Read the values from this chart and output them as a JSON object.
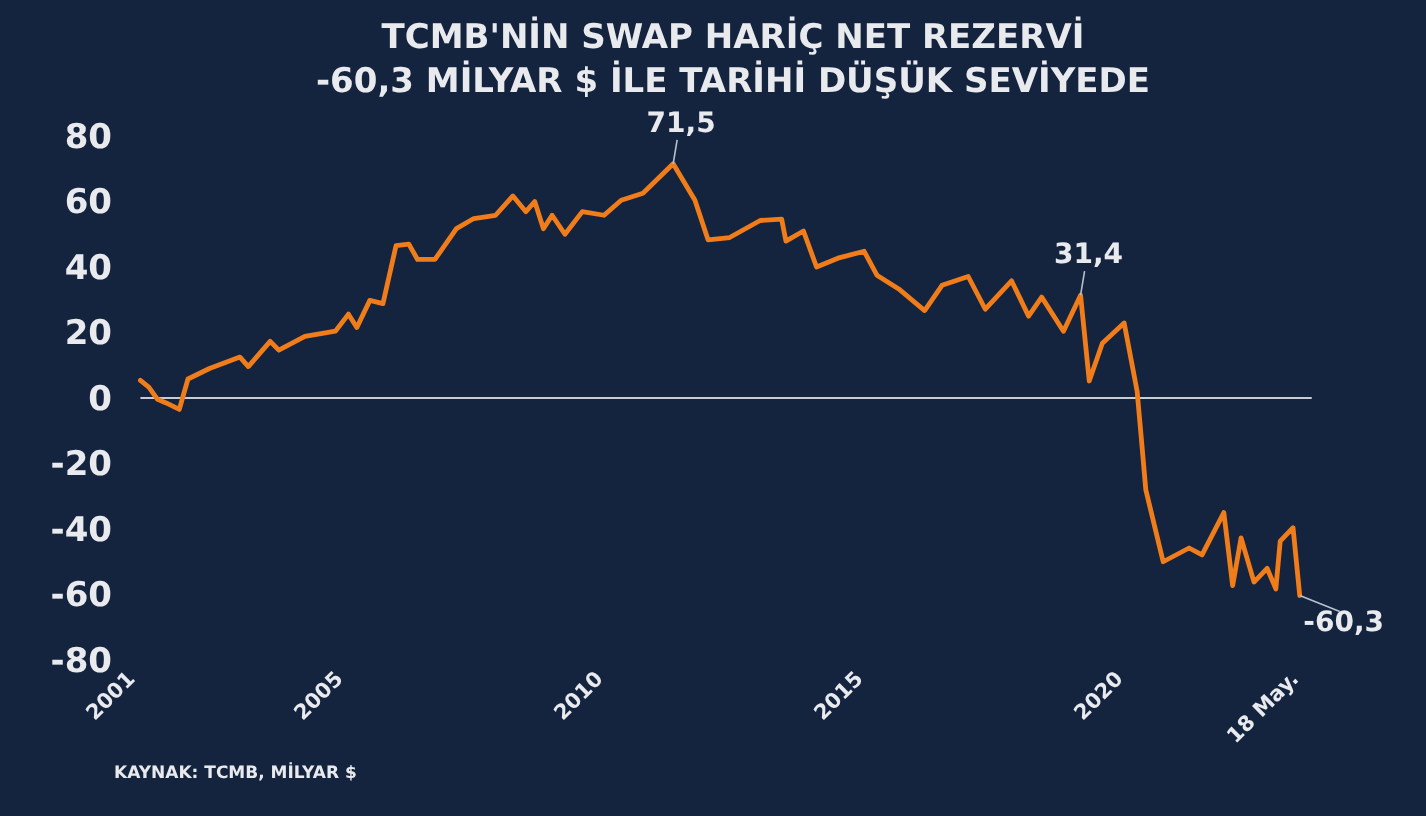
{
  "chart_data": {
    "type": "line",
    "title": "TCMB'NİN SWAP HARİÇ NET REZERVİ\n-60,3 MİLYAR $ İLE TARİHİ DÜŞÜK SEVİYEDE",
    "series": [
      {
        "color": "#f07d1a",
        "x": [
          "2001-02",
          "2001-04",
          "2001-06",
          "2001-08",
          "2001-11",
          "2002-01",
          "2002-06",
          "2003-01",
          "2003-03",
          "2003-08",
          "2003-10",
          "2004-04",
          "2004-11",
          "2005-02",
          "2005-04",
          "2005-07",
          "2005-10",
          "2006-01",
          "2006-04",
          "2006-06",
          "2006-10",
          "2007-03",
          "2007-07",
          "2007-12",
          "2008-04",
          "2008-07",
          "2008-09",
          "2008-11",
          "2009-01",
          "2009-04",
          "2009-08",
          "2010-01",
          "2010-05",
          "2010-10",
          "2011-05",
          "2011-10",
          "2012-01",
          "2012-06",
          "2013-01",
          "2013-06",
          "2013-07",
          "2013-11",
          "2014-02",
          "2014-07",
          "2015-01",
          "2015-04",
          "2015-09",
          "2016-03",
          "2016-07",
          "2017-01",
          "2017-05",
          "2017-11",
          "2018-03",
          "2018-06",
          "2018-11",
          "2019-03",
          "2019-05",
          "2019-08",
          "2020-01",
          "2020-04",
          "2020-05",
          "2020-06",
          "2020-10",
          "2021-04",
          "2021-07",
          "2021-12",
          "2022-02",
          "2022-04",
          "2022-07",
          "2022-10",
          "2022-12",
          "2023-01",
          "2023-04",
          "2023-05-18"
        ],
        "values": [
          5.4,
          3.3,
          -0.4,
          -1.5,
          -3.5,
          5.8,
          9,
          12.5,
          9.6,
          17.3,
          14.6,
          18.8,
          20.4,
          25.6,
          21.5,
          29.8,
          28.8,
          46.5,
          47,
          42.3,
          42.3,
          51.7,
          54.8,
          55.8,
          61.7,
          56.9,
          60,
          51.7,
          55.8,
          50,
          56.9,
          55.8,
          60.4,
          62.5,
          71.5,
          60.4,
          48.3,
          49,
          54.2,
          54.6,
          47.9,
          51,
          40,
          42.7,
          44.8,
          37.5,
          33.3,
          26.7,
          34.4,
          37.1,
          27.1,
          35.8,
          25,
          30.8,
          20.4,
          31.4,
          5.2,
          16.7,
          22.9,
          2.1,
          -12.5,
          -28,
          -50,
          -45.8,
          -47.9,
          -35,
          -57.3,
          -42.7,
          -56.2,
          -52,
          -58.3,
          -43.7,
          -39.6,
          -60.3
        ]
      }
    ],
    "xlim": [
      "2001-01",
      "2023-07"
    ],
    "xticks": [
      {
        "value": "2001",
        "label": "2001"
      },
      {
        "value": "2005",
        "label": "2005"
      },
      {
        "value": "2010",
        "label": "2010"
      },
      {
        "value": "2015",
        "label": "2015"
      },
      {
        "value": "2020",
        "label": "2020"
      },
      {
        "value": "2023-05-18",
        "label": "18 May."
      }
    ],
    "ylim": [
      -80,
      80
    ],
    "yticks": [
      -80,
      -60,
      -40,
      -20,
      0,
      20,
      40,
      60,
      80
    ],
    "ref_lines": [
      {
        "axis": "y",
        "value": 0,
        "color": "#c8ccd6"
      }
    ],
    "grid": false,
    "annotations": [
      {
        "text": "71,5",
        "x": "2011-05",
        "y": 71.5
      },
      {
        "text": "31,4",
        "x": "2019-03",
        "y": 31.4
      },
      {
        "text": "-60,3",
        "x": "2023-05-18",
        "y": -60.3
      },
      "KAYNAK: TCMB, MİLYAR $"
    ]
  }
}
